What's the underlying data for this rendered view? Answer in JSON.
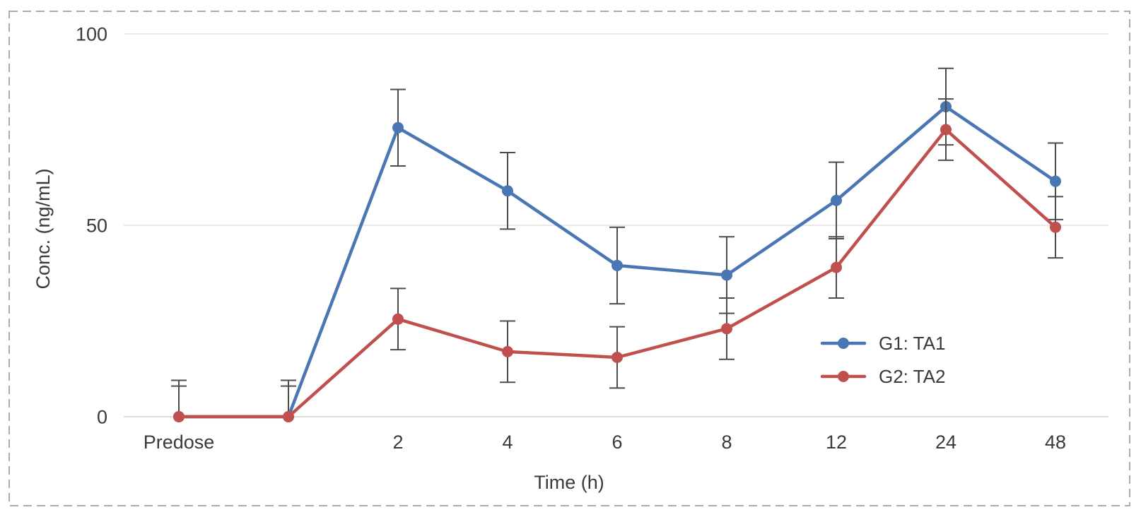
{
  "figure": {
    "border_color": "#ACACAC",
    "background": "#FFFFFF"
  },
  "chart_data": {
    "type": "line",
    "title": "",
    "xlabel": "Time (h)",
    "ylabel": "Conc. (ng/mL)",
    "categories": [
      "Predose",
      "",
      "2",
      "4",
      "6",
      "8",
      "12",
      "24",
      "48"
    ],
    "ylim": [
      0,
      100
    ],
    "yticks": [
      0,
      50,
      100
    ],
    "grid": "horizontal-only",
    "legend_position": "inside-right-lower",
    "series": [
      {
        "name": "G1: TA1",
        "color": "#4A77B4",
        "marker": "circle",
        "values": [
          0,
          0,
          75.5,
          59,
          39.5,
          37,
          56.5,
          81,
          61.5
        ],
        "err_plus": [
          9.5,
          9.5,
          10,
          10,
          10,
          10,
          10,
          10,
          10
        ],
        "err_minus": [
          0,
          0,
          10,
          10,
          10,
          10,
          10,
          10,
          10
        ]
      },
      {
        "name": "G2: TA2",
        "color": "#C0504D",
        "marker": "circle",
        "values": [
          0,
          0,
          25.5,
          17,
          15.5,
          23,
          39,
          75,
          49.5
        ],
        "err_plus": [
          8,
          8,
          8,
          8,
          8,
          8,
          8,
          8,
          8
        ],
        "err_minus": [
          0,
          0,
          8,
          8,
          8,
          8,
          8,
          8,
          8
        ]
      }
    ],
    "error_bar_color": "#4C4C4C",
    "axis_text_color": "#3A3A3A",
    "gridline_color": "#E4E4E4",
    "zero_line_color": "#D2D2D2"
  }
}
